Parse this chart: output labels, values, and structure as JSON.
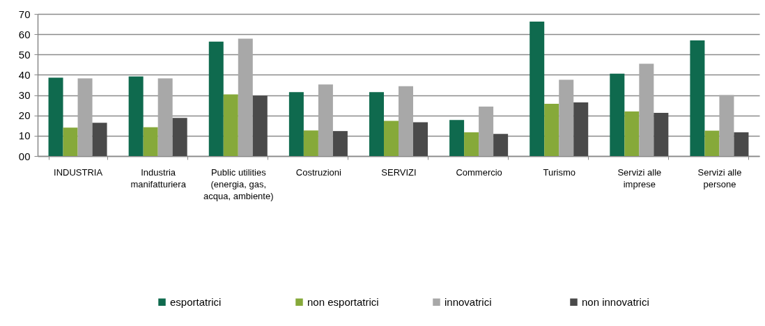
{
  "chart_data": {
    "type": "bar",
    "categories": [
      "INDUSTRIA",
      "Industria manifatturiera",
      "Public utilities (energia, gas, acqua, ambiente)",
      "Costruzioni",
      "SERVIZI",
      "Commercio",
      "Turismo",
      "Servizi alle imprese",
      "Servizi alle persone"
    ],
    "series": [
      {
        "name": "esportatrici",
        "color": "#0f6a4e",
        "values": [
          38.6,
          39.2,
          56.4,
          31.5,
          31.5,
          17.8,
          66.2,
          40.6,
          57.0
        ]
      },
      {
        "name": "non esportatrici",
        "color": "#86a93a",
        "values": [
          14.0,
          14.2,
          30.4,
          12.6,
          17.3,
          11.7,
          25.7,
          22.0,
          12.5
        ]
      },
      {
        "name": "innovatrici",
        "color": "#a8a8a8",
        "values": [
          38.3,
          38.3,
          57.8,
          35.3,
          34.4,
          24.4,
          37.6,
          45.5,
          30.0
        ]
      },
      {
        "name": "non innovatrici",
        "color": "#4a4a4a",
        "values": [
          16.4,
          18.8,
          29.8,
          12.3,
          16.6,
          10.9,
          26.4,
          21.3,
          11.7
        ]
      }
    ],
    "ylim": [
      0,
      70
    ],
    "yticks": [
      {
        "value": 0,
        "label": "00"
      },
      10,
      20,
      30,
      40,
      50,
      60,
      70
    ],
    "grid": "y",
    "legend": "bottom"
  }
}
